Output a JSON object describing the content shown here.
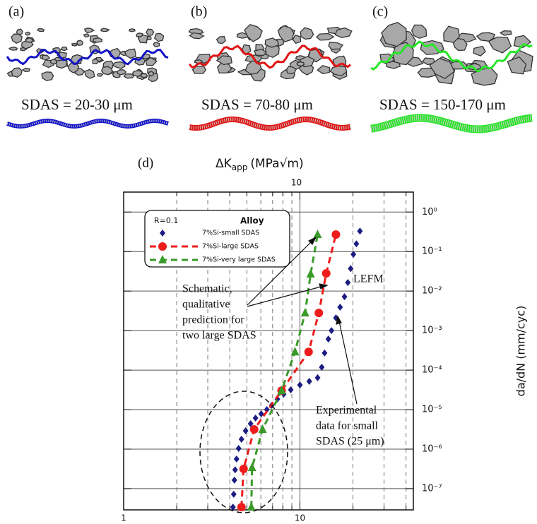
{
  "panels": [
    {
      "label": "(a)",
      "caption": "SDAS = 20-30 μm",
      "color": "#1414c8"
    },
    {
      "label": "(b)",
      "caption": "SDAS = 70-80 μm",
      "color": "#e01414"
    },
    {
      "label": "(c)",
      "caption": "SDAS = 150-170 μm",
      "color": "#28e628"
    }
  ],
  "chart_data": {
    "type": "scatter",
    "panel_label": "(d)",
    "x_label": "ΔK",
    "x_label_sub": "app",
    "x_label_unit": "(MPa√m)",
    "y_label": "da/dN (mm/cyc)",
    "xscale": "log",
    "yscale": "log",
    "xlim": [
      1,
      44
    ],
    "ylim": [
      2.9e-08,
      3.2
    ],
    "xticks": [
      1,
      10
    ],
    "top_xticks": [
      10
    ],
    "xgrid_minor": [
      2,
      3,
      4,
      5,
      6,
      7,
      8,
      9,
      20,
      30,
      40
    ],
    "yticks": [
      {
        "value": 1,
        "label": "10⁰"
      },
      {
        "value": 0.1,
        "label": "10⁻¹"
      },
      {
        "value": 0.01,
        "label": "10⁻²"
      },
      {
        "value": 0.001,
        "label": "10⁻³"
      },
      {
        "value": 0.0001,
        "label": "10⁻⁴"
      },
      {
        "value": 1e-05,
        "label": "10⁻⁵"
      },
      {
        "value": 1e-06,
        "label": "10⁻⁶"
      },
      {
        "value": 1e-07,
        "label": "10⁻⁷"
      }
    ],
    "grid": true,
    "legend": {
      "title": "R=0.1",
      "header": "Alloy",
      "position": "upper left"
    },
    "series": [
      {
        "name": "7%Si-small SDAS",
        "color": "#1c1c82",
        "marker": "diamond",
        "line": false,
        "x": [
          4.17,
          4.21,
          4.25,
          4.29,
          4.37,
          4.49,
          4.66,
          4.92,
          5.25,
          5.6,
          6.03,
          6.49,
          6.92,
          7.45,
          8.09,
          8.87,
          10,
          11.3,
          12.6,
          13.3,
          13.8,
          14.5,
          15.1,
          16.0,
          16.9,
          17.9,
          18.7,
          19.4,
          20.1,
          20.9,
          21.9
        ],
        "values": [
          3.4e-08,
          7.2e-08,
          1.64e-07,
          3e-07,
          5.6e-07,
          1.04e-06,
          1.78e-06,
          2.9e-06,
          4.4e-06,
          6.1e-06,
          7.8e-06,
          1e-05,
          1.28e-05,
          1.85e-05,
          2.47e-05,
          3.16e-05,
          4.2e-05,
          5.2e-05,
          6.4e-05,
          0.000118,
          0.00027,
          0.00061,
          0.001,
          0.0021,
          0.0039,
          0.0072,
          0.0164,
          0.037,
          0.085,
          0.157,
          0.33
        ]
      },
      {
        "name": "7%Si-large SDAS",
        "color": "#ee1c1c",
        "marker": "circle",
        "line": true,
        "x": [
          4.66,
          4.79,
          5.5,
          7.87,
          11.2,
          12.8,
          14.1,
          16.0
        ],
        "values": [
          3.4e-08,
          3.16e-07,
          3.16e-06,
          3.03e-05,
          0.00029,
          0.0028,
          0.028,
          0.27
        ]
      },
      {
        "name": "7%Si-very large SDAS",
        "color": "#3a9a2a",
        "marker": "triangle",
        "line": true,
        "x": [
          5.3,
          5.35,
          6.14,
          7.87,
          9.38,
          10.7,
          11.5,
          12.6
        ],
        "values": [
          3.4e-08,
          3.4e-07,
          3.16e-06,
          3.03e-05,
          0.00029,
          0.0028,
          0.027,
          0.27
        ]
      }
    ],
    "annotations": [
      {
        "lines": [
          "Schematic,",
          "qualitative",
          "prediction for",
          "two large SDAS"
        ]
      },
      {
        "lines": [
          "LEFM"
        ]
      },
      {
        "lines": [
          "Experimental",
          "data for small",
          "SDAS (25 μm)"
        ]
      }
    ]
  }
}
